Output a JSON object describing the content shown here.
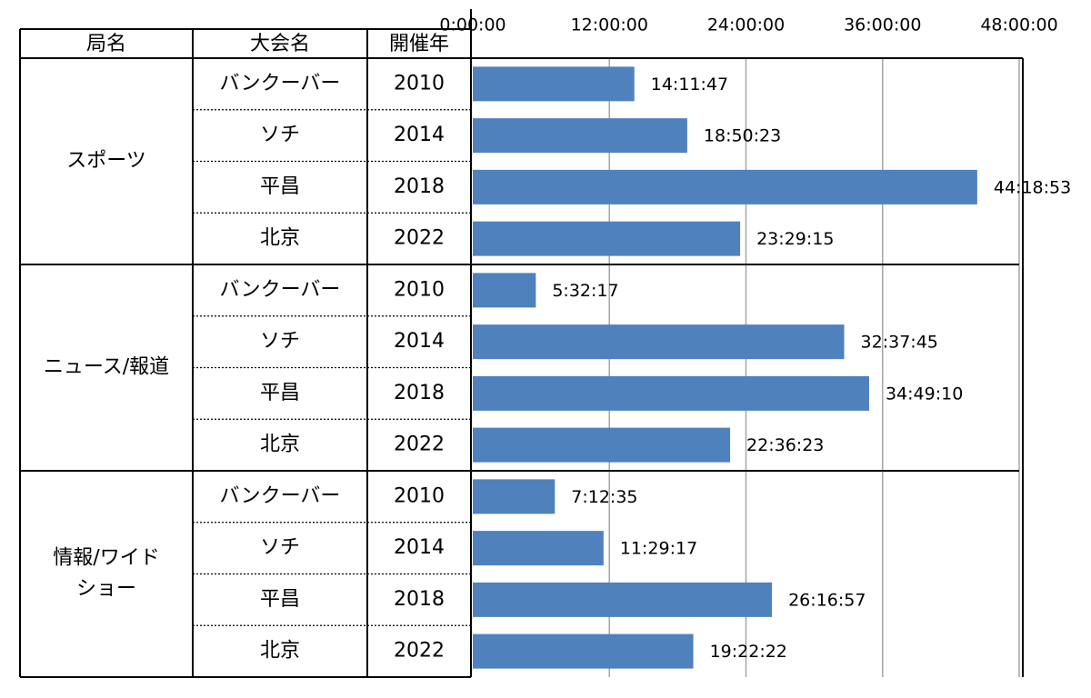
{
  "chart_data": {
    "type": "bar",
    "orientation": "horizontal",
    "title": "",
    "xlabel": "",
    "ylabel": "",
    "xlim_hours": [
      0,
      48
    ],
    "x_ticks": [
      "0:00:00",
      "12:00:00",
      "24:00:00",
      "36:00:00",
      "48:00:00"
    ],
    "grid": true,
    "legend": "none",
    "bar_color": "#4F81BD",
    "table_headers": [
      "局名",
      "大会名",
      "開催年"
    ],
    "groups": [
      {
        "name": "スポーツ",
        "name_lines": [
          "スポーツ"
        ],
        "rows": [
          {
            "event": "バンクーバー",
            "year": "2010",
            "label": "14:11:47",
            "hours": 14.196
          },
          {
            "event": "ソチ",
            "year": "2014",
            "label": "18:50:23",
            "hours": 18.84
          },
          {
            "event": "平昌",
            "year": "2018",
            "label": "44:18:53",
            "hours": 44.315
          },
          {
            "event": "北京",
            "year": "2022",
            "label": "23:29:15",
            "hours": 23.488
          }
        ]
      },
      {
        "name": "ニュース/報道",
        "name_lines": [
          "ニュース/報道"
        ],
        "rows": [
          {
            "event": "バンクーバー",
            "year": "2010",
            "label": "5:32:17",
            "hours": 5.538
          },
          {
            "event": "ソチ",
            "year": "2014",
            "label": "32:37:45",
            "hours": 32.629
          },
          {
            "event": "平昌",
            "year": "2018",
            "label": "34:49:10",
            "hours": 34.819
          },
          {
            "event": "北京",
            "year": "2022",
            "label": "22:36:23",
            "hours": 22.606
          }
        ]
      },
      {
        "name": "情報/ワイドショー",
        "name_lines": [
          "情報/ワイド",
          "ショー"
        ],
        "rows": [
          {
            "event": "バンクーバー",
            "year": "2010",
            "label": "7:12:35",
            "hours": 7.21
          },
          {
            "event": "ソチ",
            "year": "2014",
            "label": "11:29:17",
            "hours": 11.488
          },
          {
            "event": "平昌",
            "year": "2018",
            "label": "26:16:57",
            "hours": 26.283
          },
          {
            "event": "北京",
            "year": "2022",
            "label": "19:22:22",
            "hours": 19.373
          }
        ]
      }
    ]
  }
}
